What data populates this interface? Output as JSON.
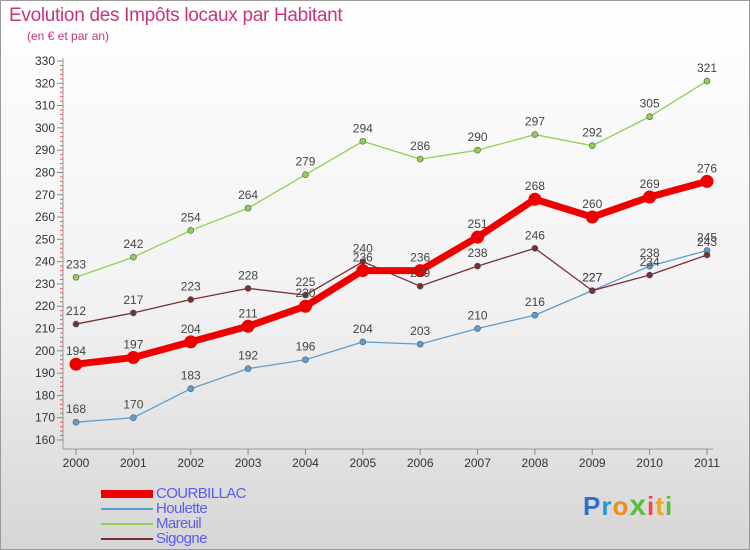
{
  "chart_data": {
    "type": "line",
    "title": "Evolution des Impôts locaux par Habitant",
    "subtitle": "(en € et par an)",
    "xlabel": "",
    "ylabel": "",
    "ylim": [
      160,
      330
    ],
    "yticks": [
      160,
      170,
      180,
      190,
      200,
      210,
      220,
      230,
      240,
      250,
      260,
      270,
      280,
      290,
      300,
      310,
      320,
      330
    ],
    "categories": [
      "2000",
      "2001",
      "2002",
      "2003",
      "2004",
      "2005",
      "2006",
      "2007",
      "2008",
      "2009",
      "2010",
      "2011"
    ],
    "series": [
      {
        "name": "COURBILLAC",
        "color": "#ee0000",
        "values": [
          194,
          197,
          204,
          211,
          220,
          236,
          236,
          251,
          268,
          260,
          269,
          276
        ]
      },
      {
        "name": "Houlette",
        "color": "#5b9fd0",
        "values": [
          168,
          170,
          183,
          192,
          196,
          204,
          203,
          210,
          216,
          227,
          238,
          245
        ]
      },
      {
        "name": "Mareuil",
        "color": "#8fd14f",
        "values": [
          233,
          242,
          254,
          264,
          279,
          294,
          286,
          290,
          297,
          292,
          305,
          321
        ]
      },
      {
        "name": "Sigogne",
        "color": "#7a2f2f",
        "values": [
          212,
          217,
          223,
          228,
          225,
          240,
          229,
          238,
          246,
          227,
          234,
          243
        ]
      }
    ],
    "grid": false,
    "legend": "bottom-left"
  },
  "brand": {
    "letters": [
      "P",
      "r",
      "o",
      "x",
      "i",
      "t",
      "i"
    ],
    "colors": [
      "#2e6fd6",
      "#1f9bd8",
      "#f28c1e",
      "#5cbf3a",
      "#ef4a4a",
      "#f2a81e",
      "#5cbf3a"
    ]
  }
}
